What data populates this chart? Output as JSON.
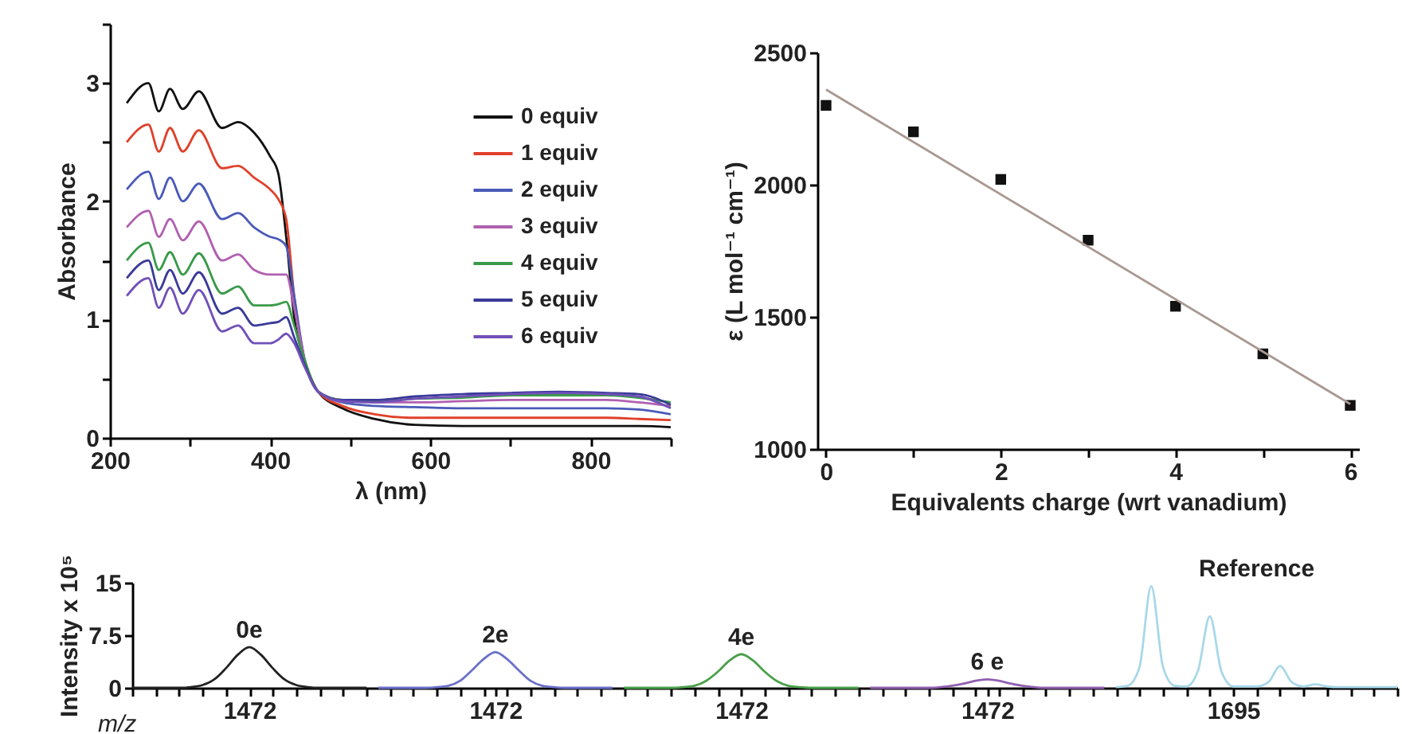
{
  "chart_data": [
    {
      "type": "line",
      "xlabel": "λ (nm)",
      "ylabel": "Absorbance",
      "xlim": [
        200,
        900
      ],
      "xticks": [
        200,
        {
          "value": 300,
          "label": null
        },
        400,
        {
          "value": 500,
          "label": null
        },
        600,
        {
          "value": 700,
          "label": null
        },
        800,
        {
          "value": 900,
          "label": null
        }
      ],
      "ylim": [
        0,
        3.5
      ],
      "yticks": [
        0,
        {
          "value": 0.5,
          "label": null
        },
        1,
        {
          "value": 1.5,
          "label": null
        },
        2,
        {
          "value": 2.5,
          "label": null
        },
        3,
        {
          "value": 3.5,
          "label": null
        }
      ],
      "legend": "top right",
      "x": [
        221,
        248,
        261,
        275,
        291,
        311,
        340,
        360,
        380,
        400,
        410,
        420,
        430,
        443,
        460,
        490,
        530,
        580,
        640,
        700,
        760,
        820,
        860,
        900
      ],
      "series": [
        {
          "name": "0 equiv",
          "color": "#111111",
          "values": [
            2.83,
            3.0,
            2.76,
            2.95,
            2.78,
            2.93,
            2.62,
            2.67,
            2.58,
            2.38,
            2.24,
            1.7,
            1.02,
            0.66,
            0.39,
            0.25,
            0.16,
            0.11,
            0.1,
            0.1,
            0.1,
            0.1,
            0.1,
            0.09
          ]
        },
        {
          "name": "1 equiv",
          "color": "#e0402a",
          "values": [
            2.5,
            2.65,
            2.42,
            2.62,
            2.42,
            2.6,
            2.28,
            2.3,
            2.2,
            2.1,
            2.02,
            1.85,
            1.2,
            0.66,
            0.39,
            0.27,
            0.2,
            0.17,
            0.17,
            0.17,
            0.17,
            0.17,
            0.16,
            0.15
          ]
        },
        {
          "name": "2 equiv",
          "color": "#4a5ab8",
          "values": [
            2.1,
            2.25,
            2.02,
            2.2,
            2.0,
            2.15,
            1.85,
            1.9,
            1.78,
            1.7,
            1.68,
            1.62,
            1.2,
            0.66,
            0.39,
            0.3,
            0.27,
            0.26,
            0.25,
            0.25,
            0.25,
            0.25,
            0.24,
            0.2
          ]
        },
        {
          "name": "3 equiv",
          "color": "#b060b0",
          "values": [
            1.78,
            1.92,
            1.7,
            1.85,
            1.67,
            1.83,
            1.5,
            1.55,
            1.42,
            1.38,
            1.38,
            1.38,
            1.1,
            0.66,
            0.39,
            0.31,
            0.3,
            0.3,
            0.31,
            0.32,
            0.32,
            0.32,
            0.3,
            0.27
          ]
        },
        {
          "name": "4 equiv",
          "color": "#3a9a4a",
          "values": [
            1.5,
            1.65,
            1.42,
            1.57,
            1.38,
            1.56,
            1.22,
            1.28,
            1.12,
            1.12,
            1.13,
            1.15,
            0.95,
            0.66,
            0.39,
            0.32,
            0.31,
            0.33,
            0.34,
            0.36,
            0.36,
            0.36,
            0.34,
            0.3
          ]
        },
        {
          "name": "5 equiv",
          "color": "#3a3a9a",
          "values": [
            1.35,
            1.5,
            1.25,
            1.42,
            1.22,
            1.4,
            1.05,
            1.1,
            0.95,
            0.97,
            0.98,
            1.02,
            0.85,
            0.62,
            0.39,
            0.32,
            0.32,
            0.35,
            0.37,
            0.38,
            0.39,
            0.38,
            0.37,
            0.28
          ]
        },
        {
          "name": "6 equiv",
          "color": "#7050b8",
          "values": [
            1.2,
            1.35,
            1.1,
            1.27,
            1.05,
            1.25,
            0.9,
            0.95,
            0.8,
            0.8,
            0.83,
            0.88,
            0.8,
            0.6,
            0.39,
            0.31,
            0.3,
            0.33,
            0.35,
            0.37,
            0.38,
            0.37,
            0.35,
            0.25
          ]
        }
      ]
    },
    {
      "type": "scatter",
      "xlabel": "Equivalents charge (wrt vanadium)",
      "ylabel": "ε (L mol⁻¹ cm⁻¹)",
      "xlim": [
        -0.1,
        6.1
      ],
      "xticks": [
        0,
        {
          "value": 1,
          "label": null
        },
        2,
        {
          "value": 3,
          "label": null
        },
        4,
        {
          "value": 5,
          "label": null
        },
        6
      ],
      "ylim": [
        1000,
        2500
      ],
      "yticks": [
        1000,
        1500,
        2000,
        2500
      ],
      "marker": "square",
      "x": [
        0,
        1,
        2,
        3,
        4,
        5,
        6
      ],
      "series": [
        {
          "color": "#111111",
          "values": [
            2300,
            2200,
            2020,
            1790,
            1540,
            1360,
            1165
          ]
        },
        {
          "type": "line",
          "marker": "none",
          "color": "#a89890",
          "x": [
            0,
            6
          ],
          "values": [
            2360,
            1170
          ]
        }
      ]
    },
    {
      "type": "line",
      "xlabel": "m/z",
      "ylabel": "Intensity x 10⁵",
      "ylim": [
        0,
        15
      ],
      "yticks": [
        0,
        7.5,
        15
      ],
      "categories": [
        null,
        null,
        null,
        null,
        null,
        null,
        null,
        null,
        null,
        null,
        "1472",
        null,
        null,
        null,
        null,
        null,
        null,
        null,
        null,
        null,
        null,
        null,
        null,
        null,
        null,
        null,
        null,
        null,
        null,
        null,
        null,
        "1472",
        null,
        null,
        null,
        null,
        null,
        null,
        null,
        null,
        null,
        null,
        null,
        null,
        null,
        null,
        null,
        null,
        null,
        null,
        null,
        null,
        "1472",
        null,
        null,
        null,
        null,
        null,
        null,
        null,
        null,
        null,
        null,
        null,
        null,
        null,
        null,
        null,
        null,
        null,
        null,
        null,
        null,
        "1472",
        null,
        null,
        null,
        null,
        null,
        null,
        null,
        null,
        null,
        null,
        null,
        null,
        null,
        null,
        null,
        null,
        null,
        null,
        null,
        null,
        "1695",
        null,
        null,
        null,
        null,
        null,
        null,
        null,
        null,
        null,
        null,
        null,
        null,
        null,
        null
      ],
      "series": [
        {
          "name": "0e",
          "color": "#222222",
          "values": [
            0,
            0,
            0,
            0,
            0,
            0.1,
            0.4,
            1.2,
            2.8,
            4.7,
            5.8,
            4.7,
            2.8,
            1.2,
            0.4,
            0.1,
            0,
            0,
            0,
            0,
            0,
            null,
            null,
            null,
            null,
            null,
            null,
            null,
            null,
            null,
            null,
            null,
            null,
            null,
            null,
            null,
            null,
            null,
            null,
            null,
            null,
            null,
            null,
            null,
            null,
            null,
            null,
            null,
            null,
            null,
            null,
            null,
            null,
            null,
            null,
            null,
            null,
            null,
            null,
            null,
            null,
            null,
            null,
            null,
            null,
            null,
            null,
            null,
            null,
            null,
            null,
            null,
            null,
            null,
            null,
            null,
            null,
            null,
            null,
            null,
            null,
            null,
            null,
            null,
            null,
            null,
            null,
            null,
            null,
            null,
            null,
            null,
            null,
            null,
            null,
            null,
            null,
            null,
            null,
            null,
            null,
            null,
            null,
            null,
            null,
            null,
            null,
            null,
            null
          ]
        },
        {
          "name": "2e",
          "color": "#6a70c8",
          "values": [
            null,
            null,
            null,
            null,
            null,
            null,
            null,
            null,
            null,
            null,
            null,
            null,
            null,
            null,
            null,
            null,
            null,
            null,
            null,
            null,
            null,
            0,
            0,
            0,
            0,
            0,
            0.1,
            0.3,
            1.0,
            2.5,
            4.1,
            5.1,
            4.1,
            2.5,
            1.0,
            0.3,
            0.1,
            0,
            0,
            0,
            0,
            0,
            null,
            null,
            null,
            null,
            null,
            null,
            null,
            null,
            null,
            null,
            null,
            null,
            null,
            null,
            null,
            null,
            null,
            null,
            null,
            null,
            null,
            null,
            null,
            null,
            null,
            null,
            null,
            null,
            null,
            null,
            null,
            null,
            null,
            null,
            null,
            null,
            null,
            null,
            null,
            null,
            null,
            null,
            null,
            null,
            null,
            null,
            null,
            null,
            null,
            null,
            null,
            null,
            null,
            null,
            null,
            null,
            null,
            null,
            null,
            null,
            null,
            null,
            null,
            null,
            null,
            null,
            null
          ]
        },
        {
          "name": "4e",
          "color": "#4aa04a",
          "values": [
            null,
            null,
            null,
            null,
            null,
            null,
            null,
            null,
            null,
            null,
            null,
            null,
            null,
            null,
            null,
            null,
            null,
            null,
            null,
            null,
            null,
            null,
            null,
            null,
            null,
            null,
            null,
            null,
            null,
            null,
            null,
            null,
            null,
            null,
            null,
            null,
            null,
            null,
            null,
            null,
            null,
            null,
            0,
            0,
            0,
            0,
            0,
            0.1,
            0.3,
            1.0,
            2.3,
            3.9,
            4.8,
            3.9,
            2.3,
            1.0,
            0.3,
            0.1,
            0,
            0,
            0,
            0,
            0,
            null,
            null,
            null,
            null,
            null,
            null,
            null,
            null,
            null,
            null,
            null,
            null,
            null,
            null,
            null,
            null,
            null,
            null,
            null,
            null,
            null,
            null,
            null,
            null,
            null,
            null,
            null,
            null,
            null,
            null,
            null,
            null,
            null,
            null,
            null,
            null,
            null,
            null,
            null,
            null,
            null,
            null,
            null,
            null,
            null,
            null
          ]
        },
        {
          "name": "6 e",
          "color": "#9060b0",
          "values": [
            null,
            null,
            null,
            null,
            null,
            null,
            null,
            null,
            null,
            null,
            null,
            null,
            null,
            null,
            null,
            null,
            null,
            null,
            null,
            null,
            null,
            null,
            null,
            null,
            null,
            null,
            null,
            null,
            null,
            null,
            null,
            null,
            null,
            null,
            null,
            null,
            null,
            null,
            null,
            null,
            null,
            null,
            null,
            null,
            null,
            null,
            null,
            null,
            null,
            null,
            null,
            null,
            null,
            null,
            null,
            null,
            null,
            null,
            null,
            null,
            null,
            null,
            null,
            0,
            0,
            0,
            0,
            0,
            0,
            0.1,
            0.3,
            0.6,
            1.0,
            1.2,
            1.0,
            0.6,
            0.3,
            0.1,
            0,
            0,
            0,
            0,
            0,
            0,
            null,
            null,
            null,
            null,
            null,
            null,
            null,
            null,
            null,
            null,
            null,
            null,
            null,
            null,
            null,
            null,
            null,
            null,
            null,
            null,
            null,
            null,
            null,
            null,
            null
          ]
        },
        {
          "name": "Reference",
          "color": "#a8d8e8",
          "values": [
            null,
            null,
            null,
            null,
            null,
            null,
            null,
            null,
            null,
            null,
            null,
            null,
            null,
            null,
            null,
            null,
            null,
            null,
            null,
            null,
            null,
            null,
            null,
            null,
            null,
            null,
            null,
            null,
            null,
            null,
            null,
            null,
            null,
            null,
            null,
            null,
            null,
            null,
            null,
            null,
            null,
            null,
            null,
            null,
            null,
            null,
            null,
            null,
            null,
            null,
            null,
            null,
            null,
            null,
            null,
            null,
            null,
            null,
            null,
            null,
            null,
            null,
            null,
            null,
            null,
            null,
            null,
            null,
            null,
            null,
            null,
            null,
            null,
            null,
            null,
            null,
            null,
            null,
            null,
            null,
            null,
            null,
            null,
            null,
            0.1,
            0.3,
            3,
            14.5,
            3,
            0.3,
            0.2,
            2.5,
            10.2,
            2.3,
            0.2,
            0.2,
            0.2,
            0.8,
            3.1,
            0.8,
            0.2,
            0.5,
            0.2,
            0.1,
            0.1,
            0.1,
            0.1,
            0.1,
            0.1
          ]
        }
      ]
    }
  ]
}
